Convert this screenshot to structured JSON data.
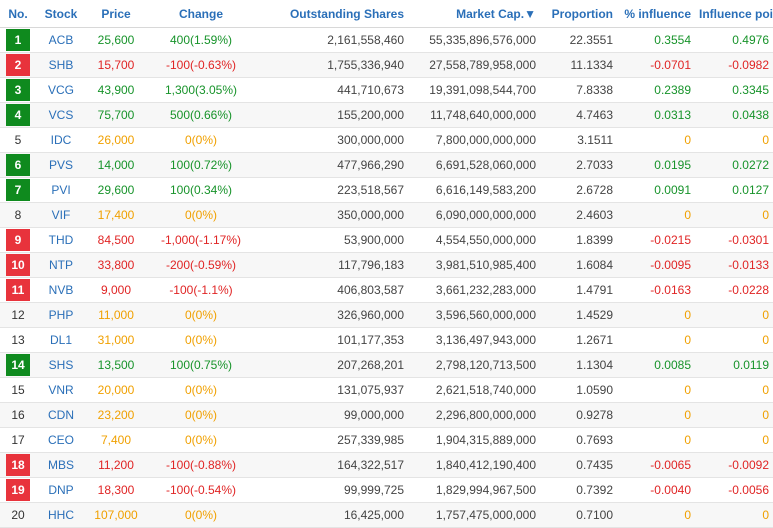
{
  "headers": {
    "no": "No.",
    "stock": "Stock",
    "price": "Price",
    "change": "Change",
    "shares": "Outstanding Shares",
    "mcap": "Market Cap.",
    "sort_icon": "▼",
    "proportion": "Proportion",
    "influence_pct": "% influence",
    "influence_pts": "Influence points"
  },
  "colors": {
    "up": "#17932a",
    "down": "#e02424",
    "ref": "#f0a000",
    "header": "#2a6fb8"
  },
  "rows": [
    {
      "no": "1",
      "trend": "up",
      "stock": "ACB",
      "price": "25,600",
      "change": "400(1.59%)",
      "shares": "2,161,558,460",
      "mcap": "55,335,896,576,000",
      "proportion": "22.3551",
      "influence_pct": "0.3554",
      "influence_pts": "0.4976"
    },
    {
      "no": "2",
      "trend": "down",
      "stock": "SHB",
      "price": "15,700",
      "change": "-100(-0.63%)",
      "shares": "1,755,336,940",
      "mcap": "27,558,789,958,000",
      "proportion": "11.1334",
      "influence_pct": "-0.0701",
      "influence_pts": "-0.0982"
    },
    {
      "no": "3",
      "trend": "up",
      "stock": "VCG",
      "price": "43,900",
      "change": "1,300(3.05%)",
      "shares": "441,710,673",
      "mcap": "19,391,098,544,700",
      "proportion": "7.8338",
      "influence_pct": "0.2389",
      "influence_pts": "0.3345"
    },
    {
      "no": "4",
      "trend": "up",
      "stock": "VCS",
      "price": "75,700",
      "change": "500(0.66%)",
      "shares": "155,200,000",
      "mcap": "11,748,640,000,000",
      "proportion": "4.7463",
      "influence_pct": "0.0313",
      "influence_pts": "0.0438"
    },
    {
      "no": "5",
      "trend": "ref",
      "stock": "IDC",
      "price": "26,000",
      "change": "0(0%)",
      "shares": "300,000,000",
      "mcap": "7,800,000,000,000",
      "proportion": "3.1511",
      "influence_pct": "0",
      "influence_pts": "0"
    },
    {
      "no": "6",
      "trend": "up",
      "stock": "PVS",
      "price": "14,000",
      "change": "100(0.72%)",
      "shares": "477,966,290",
      "mcap": "6,691,528,060,000",
      "proportion": "2.7033",
      "influence_pct": "0.0195",
      "influence_pts": "0.0272"
    },
    {
      "no": "7",
      "trend": "up",
      "stock": "PVI",
      "price": "29,600",
      "change": "100(0.34%)",
      "shares": "223,518,567",
      "mcap": "6,616,149,583,200",
      "proportion": "2.6728",
      "influence_pct": "0.0091",
      "influence_pts": "0.0127"
    },
    {
      "no": "8",
      "trend": "ref",
      "stock": "VIF",
      "price": "17,400",
      "change": "0(0%)",
      "shares": "350,000,000",
      "mcap": "6,090,000,000,000",
      "proportion": "2.4603",
      "influence_pct": "0",
      "influence_pts": "0"
    },
    {
      "no": "9",
      "trend": "down",
      "stock": "THD",
      "price": "84,500",
      "change": "-1,000(-1.17%)",
      "shares": "53,900,000",
      "mcap": "4,554,550,000,000",
      "proportion": "1.8399",
      "influence_pct": "-0.0215",
      "influence_pts": "-0.0301"
    },
    {
      "no": "10",
      "trend": "down",
      "stock": "NTP",
      "price": "33,800",
      "change": "-200(-0.59%)",
      "shares": "117,796,183",
      "mcap": "3,981,510,985,400",
      "proportion": "1.6084",
      "influence_pct": "-0.0095",
      "influence_pts": "-0.0133"
    },
    {
      "no": "11",
      "trend": "down",
      "stock": "NVB",
      "price": "9,000",
      "change": "-100(-1.1%)",
      "shares": "406,803,587",
      "mcap": "3,661,232,283,000",
      "proportion": "1.4791",
      "influence_pct": "-0.0163",
      "influence_pts": "-0.0228"
    },
    {
      "no": "12",
      "trend": "ref",
      "stock": "PHP",
      "price": "11,000",
      "change": "0(0%)",
      "shares": "326,960,000",
      "mcap": "3,596,560,000,000",
      "proportion": "1.4529",
      "influence_pct": "0",
      "influence_pts": "0"
    },
    {
      "no": "13",
      "trend": "ref",
      "stock": "DL1",
      "price": "31,000",
      "change": "0(0%)",
      "shares": "101,177,353",
      "mcap": "3,136,497,943,000",
      "proportion": "1.2671",
      "influence_pct": "0",
      "influence_pts": "0"
    },
    {
      "no": "14",
      "trend": "up",
      "stock": "SHS",
      "price": "13,500",
      "change": "100(0.75%)",
      "shares": "207,268,201",
      "mcap": "2,798,120,713,500",
      "proportion": "1.1304",
      "influence_pct": "0.0085",
      "influence_pts": "0.0119"
    },
    {
      "no": "15",
      "trend": "ref",
      "stock": "VNR",
      "price": "20,000",
      "change": "0(0%)",
      "shares": "131,075,937",
      "mcap": "2,621,518,740,000",
      "proportion": "1.0590",
      "influence_pct": "0",
      "influence_pts": "0"
    },
    {
      "no": "16",
      "trend": "ref",
      "stock": "CDN",
      "price": "23,200",
      "change": "0(0%)",
      "shares": "99,000,000",
      "mcap": "2,296,800,000,000",
      "proportion": "0.9278",
      "influence_pct": "0",
      "influence_pts": "0"
    },
    {
      "no": "17",
      "trend": "ref",
      "stock": "CEO",
      "price": "7,400",
      "change": "0(0%)",
      "shares": "257,339,985",
      "mcap": "1,904,315,889,000",
      "proportion": "0.7693",
      "influence_pct": "0",
      "influence_pts": "0"
    },
    {
      "no": "18",
      "trend": "down",
      "stock": "MBS",
      "price": "11,200",
      "change": "-100(-0.88%)",
      "shares": "164,322,517",
      "mcap": "1,840,412,190,400",
      "proportion": "0.7435",
      "influence_pct": "-0.0065",
      "influence_pts": "-0.0092"
    },
    {
      "no": "19",
      "trend": "down",
      "stock": "DNP",
      "price": "18,300",
      "change": "-100(-0.54%)",
      "shares": "99,999,725",
      "mcap": "1,829,994,967,500",
      "proportion": "0.7392",
      "influence_pct": "-0.0040",
      "influence_pts": "-0.0056"
    },
    {
      "no": "20",
      "trend": "ref",
      "stock": "HHC",
      "price": "107,000",
      "change": "0(0%)",
      "shares": "16,425,000",
      "mcap": "1,757,475,000,000",
      "proportion": "0.7100",
      "influence_pct": "0",
      "influence_pts": "0"
    }
  ]
}
